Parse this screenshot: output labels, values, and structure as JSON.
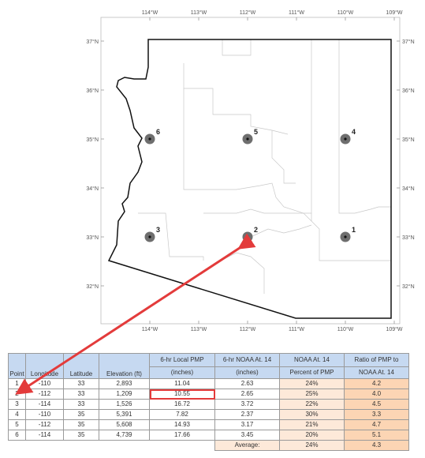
{
  "map": {
    "lon_ticks": [
      "114°W",
      "113°W",
      "112°W",
      "111°W",
      "110°W",
      "109°W"
    ],
    "lat_ticks": [
      "37°N",
      "36°N",
      "35°N",
      "34°N",
      "33°N",
      "32°N"
    ],
    "points": [
      {
        "label": "1",
        "lon": -110,
        "lat": 33
      },
      {
        "label": "2",
        "lon": -112,
        "lat": 33
      },
      {
        "label": "3",
        "lon": -114,
        "lat": 33
      },
      {
        "label": "4",
        "lon": -110,
        "lat": 35
      },
      {
        "label": "5",
        "lon": -112,
        "lat": 35
      },
      {
        "label": "6",
        "lon": -114,
        "lat": 35
      }
    ],
    "colors": {
      "border": "#111111",
      "county": "#c8c8c8",
      "point": "#6e6e6e",
      "arrow": "#e33b3b"
    }
  },
  "table": {
    "headers": {
      "point": "Point",
      "longitude": "Longitude",
      "latitude": "Latitude",
      "elevation": "Elevation (ft)",
      "local_pmp_1": "6-hr Local PMP",
      "local_pmp_2": "(inches)",
      "noaa_1": "6-hr NOAA At. 14",
      "noaa_2": "(inches)",
      "percent_1": "NOAA At. 14",
      "percent_2": "Percent of PMP",
      "ratio_1": "Ratio of PMP to",
      "ratio_2": "NOAA At. 14"
    },
    "rows": [
      {
        "point": "1",
        "longitude": "-110",
        "latitude": "33",
        "elevation": "2,893",
        "local_pmp": "11.04",
        "noaa": "2.63",
        "percent": "24%",
        "ratio": "4.2"
      },
      {
        "point": "2",
        "longitude": "-112",
        "latitude": "33",
        "elevation": "1,209",
        "local_pmp": "10.55",
        "noaa": "2.65",
        "percent": "25%",
        "ratio": "4.0"
      },
      {
        "point": "3",
        "longitude": "-114",
        "latitude": "33",
        "elevation": "1,526",
        "local_pmp": "16.72",
        "noaa": "3.72",
        "percent": "22%",
        "ratio": "4.5"
      },
      {
        "point": "4",
        "longitude": "-110",
        "latitude": "35",
        "elevation": "5,391",
        "local_pmp": "7.82",
        "noaa": "2.37",
        "percent": "30%",
        "ratio": "3.3"
      },
      {
        "point": "5",
        "longitude": "-112",
        "latitude": "35",
        "elevation": "5,608",
        "local_pmp": "14.93",
        "noaa": "3.17",
        "percent": "21%",
        "ratio": "4.7"
      },
      {
        "point": "6",
        "longitude": "-114",
        "latitude": "35",
        "elevation": "4,739",
        "local_pmp": "17.66",
        "noaa": "3.45",
        "percent": "20%",
        "ratio": "5.1"
      }
    ],
    "average_label": "Average:",
    "average_percent": "24%",
    "average_ratio": "4.3"
  }
}
